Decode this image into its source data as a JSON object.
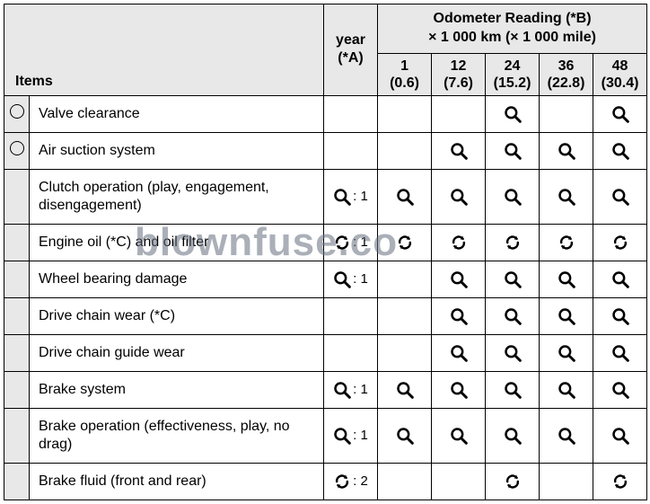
{
  "watermark": "blownfuse.co",
  "icons": {
    "inspect": "Q",
    "replace": "↻"
  },
  "header": {
    "items_label": "Items",
    "year_label_l1": "year",
    "year_label_l2": "(*A)",
    "odo_label_l1": "Odometer Reading (*B)",
    "odo_label_l2": "× 1 000 km (× 1 000 mile)",
    "cols": [
      {
        "km": "1",
        "mi": "(0.6)"
      },
      {
        "km": "12",
        "mi": "(7.6)"
      },
      {
        "km": "24",
        "mi": "(15.2)"
      },
      {
        "km": "36",
        "mi": "(22.8)"
      },
      {
        "km": "48",
        "mi": "(30.4)"
      }
    ]
  },
  "rows": [
    {
      "flag": "o",
      "item": "Valve clearance",
      "year": null,
      "cells": [
        null,
        null,
        "inspect",
        null,
        "inspect"
      ]
    },
    {
      "flag": "o",
      "item": "Air suction system",
      "year": null,
      "cells": [
        null,
        "inspect",
        "inspect",
        "inspect",
        "inspect"
      ]
    },
    {
      "flag": null,
      "item": "Clutch operation (play, engagement, disengagement)",
      "year": {
        "icon": "inspect",
        "suffix": ": 1"
      },
      "cells": [
        "inspect",
        "inspect",
        "inspect",
        "inspect",
        "inspect"
      ]
    },
    {
      "flag": null,
      "item": "Engine oil (*C) and oil filter",
      "year": {
        "icon": "replace",
        "suffix": ": 1"
      },
      "cells": [
        "replace",
        "replace",
        "replace",
        "replace",
        "replace"
      ]
    },
    {
      "flag": null,
      "item": "Wheel bearing damage",
      "year": {
        "icon": "inspect",
        "suffix": ": 1"
      },
      "cells": [
        null,
        "inspect",
        "inspect",
        "inspect",
        "inspect"
      ]
    },
    {
      "flag": null,
      "item": "Drive chain wear (*C)",
      "year": null,
      "cells": [
        null,
        "inspect",
        "inspect",
        "inspect",
        "inspect"
      ]
    },
    {
      "flag": null,
      "item": "Drive chain guide wear",
      "year": null,
      "cells": [
        null,
        "inspect",
        "inspect",
        "inspect",
        "inspect"
      ]
    },
    {
      "flag": null,
      "item": "Brake system",
      "year": {
        "icon": "inspect",
        "suffix": ": 1"
      },
      "cells": [
        "inspect",
        "inspect",
        "inspect",
        "inspect",
        "inspect"
      ]
    },
    {
      "flag": null,
      "item": "Brake operation (effectiveness, play, no drag)",
      "year": {
        "icon": "inspect",
        "suffix": ": 1"
      },
      "cells": [
        "inspect",
        "inspect",
        "inspect",
        "inspect",
        "inspect"
      ]
    },
    {
      "flag": null,
      "item": "Brake fluid (front and rear)",
      "year": {
        "icon": "replace",
        "suffix": ": 2"
      },
      "cells": [
        null,
        null,
        "replace",
        null,
        "replace"
      ]
    }
  ],
  "style": {
    "header_bg": "#e8e8e8",
    "border_color": "#000000",
    "text_color": "#000000",
    "font_size_body": 16,
    "icon_size": 20
  }
}
